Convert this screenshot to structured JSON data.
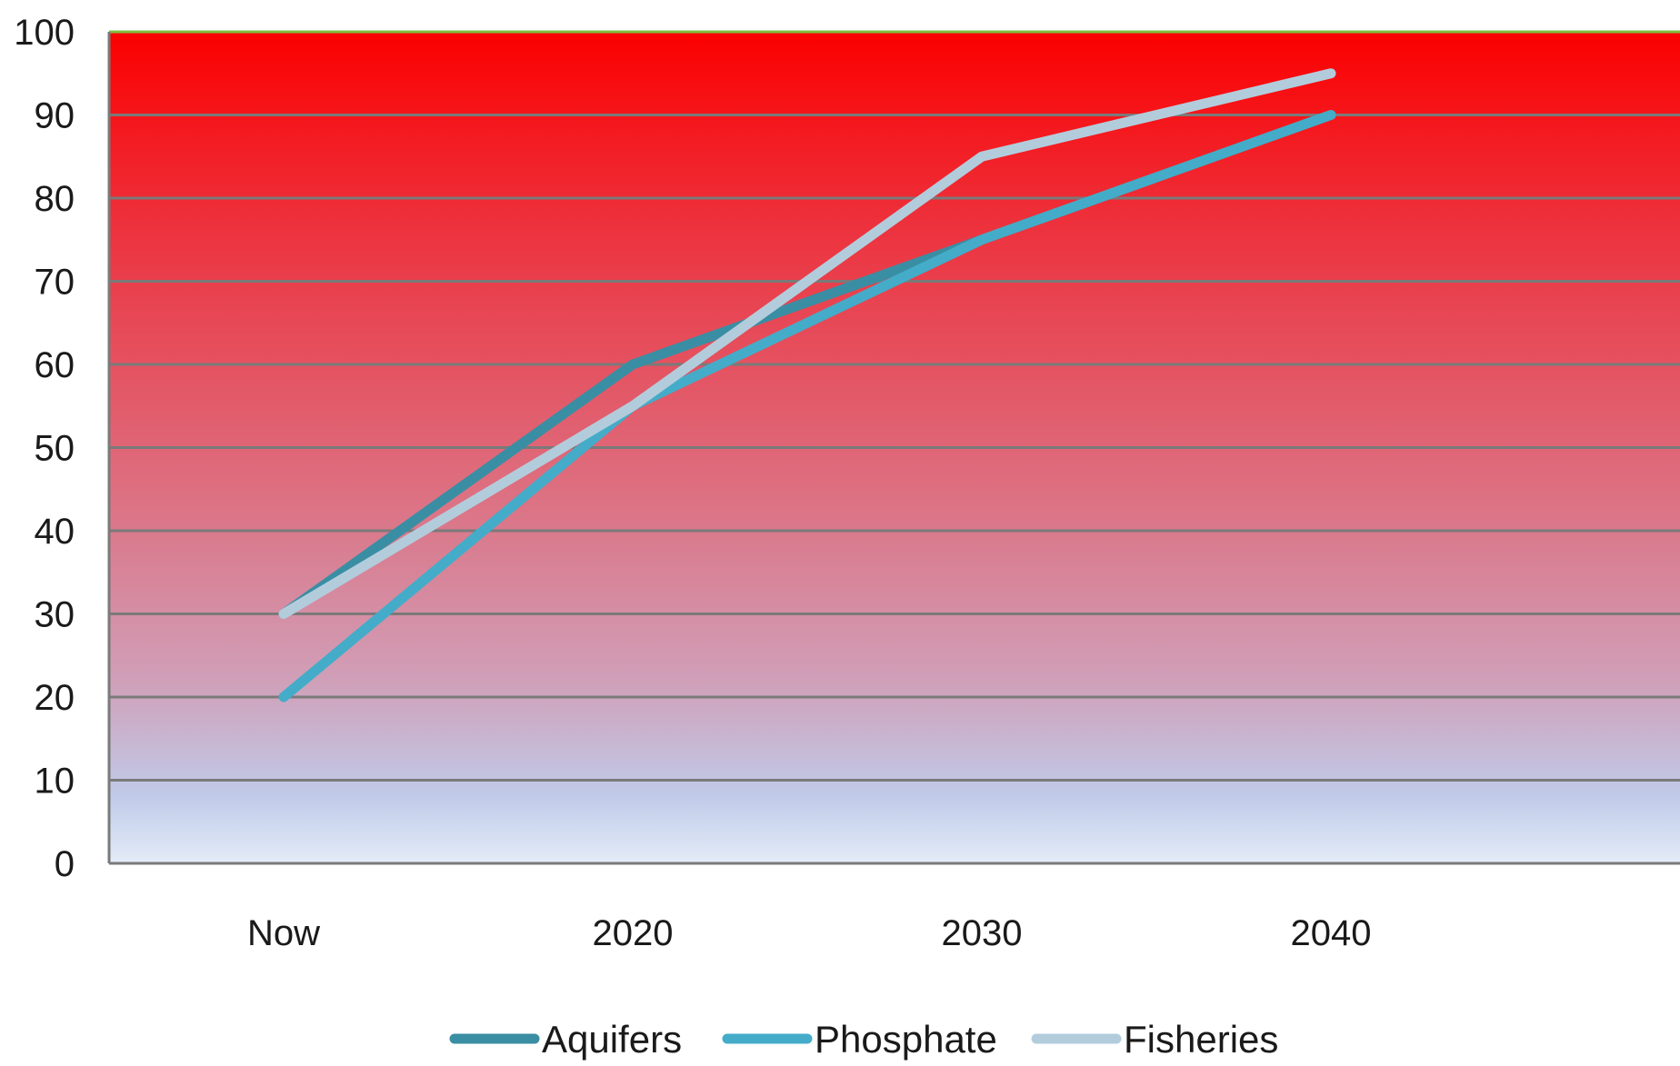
{
  "chart_data": {
    "type": "line",
    "categories": [
      "Now",
      "2020",
      "2030",
      "2040"
    ],
    "ylim": [
      0,
      100
    ],
    "yticks": [
      0,
      10,
      20,
      30,
      40,
      50,
      60,
      70,
      80,
      90,
      100
    ],
    "grid": true,
    "legend_position": "bottom",
    "background": "vertical gradient from red at top to pale blue at bottom",
    "series": [
      {
        "name": "Aquifers",
        "values": [
          30,
          60,
          75,
          90
        ],
        "color": "#3a8ea3"
      },
      {
        "name": "Phosphate",
        "values": [
          20,
          55,
          75,
          90
        ],
        "color": "#44acc8"
      },
      {
        "name": "Fisheries",
        "values": [
          30,
          55,
          85,
          95
        ],
        "color": "#b3ccdc"
      }
    ],
    "title": "",
    "xlabel": "",
    "ylabel": ""
  }
}
